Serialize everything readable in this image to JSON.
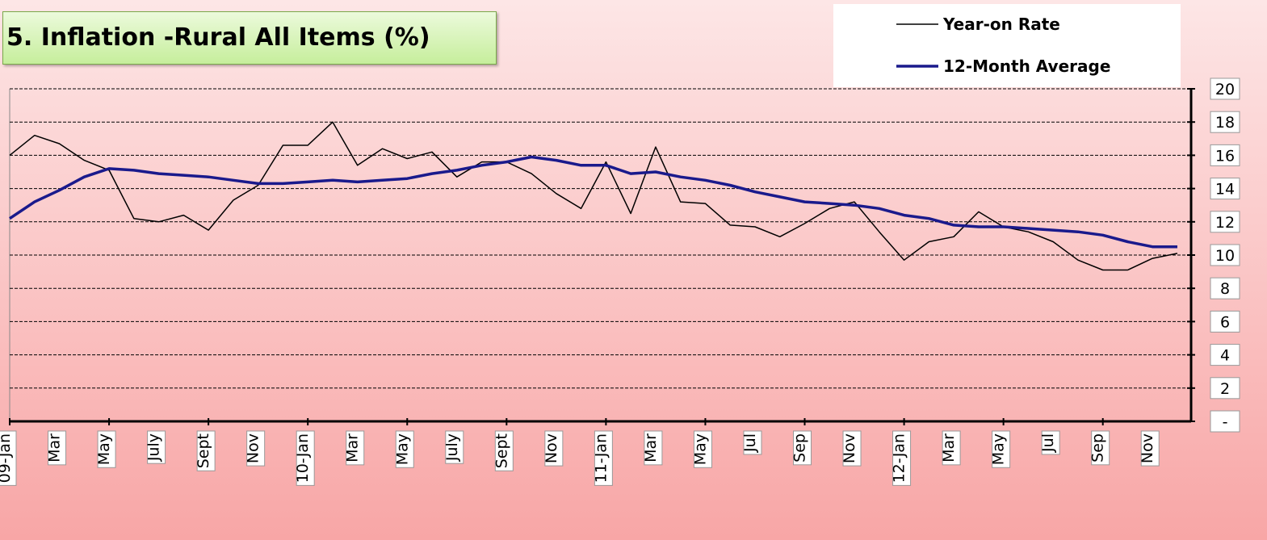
{
  "chart_data": {
    "type": "line",
    "title": "5. Inflation -Rural All Items (%)",
    "categories": [
      "09-Jan",
      null,
      "Mar",
      null,
      "May",
      null,
      "July",
      null,
      "Sept",
      null,
      "Nov",
      null,
      "10-Jan",
      null,
      "Mar",
      null,
      "May",
      null,
      "July",
      null,
      "Sept",
      null,
      "Nov",
      null,
      "11-Jan",
      null,
      "Mar",
      null,
      "May",
      null,
      "Jul",
      null,
      "Sep",
      null,
      "Nov",
      null,
      "12-Jan",
      null,
      "Mar",
      null,
      "May",
      null,
      "Jul",
      null,
      "Sep",
      null,
      "Nov",
      null
    ],
    "series": [
      {
        "name": "Year-on Rate",
        "color": "#000000",
        "values": [
          16.0,
          17.2,
          16.7,
          15.7,
          15.1,
          12.2,
          12.0,
          12.4,
          11.5,
          13.3,
          14.2,
          16.6,
          16.6,
          18.0,
          15.4,
          16.4,
          15.8,
          16.2,
          14.7,
          15.6,
          15.6,
          14.9,
          13.7,
          12.8,
          15.6,
          12.5,
          16.5,
          13.2,
          13.1,
          11.8,
          11.7,
          11.1,
          11.9,
          12.8,
          13.2,
          11.4,
          9.7,
          10.8,
          11.1,
          12.6,
          11.7,
          11.4,
          10.8,
          9.7,
          9.1,
          9.1,
          9.8,
          10.1
        ]
      },
      {
        "name": "12-Month Average",
        "color": "#1a1a8c",
        "values": [
          12.2,
          13.2,
          13.9,
          14.7,
          15.2,
          15.1,
          14.9,
          14.8,
          14.7,
          14.5,
          14.3,
          14.3,
          14.4,
          14.5,
          14.4,
          14.5,
          14.6,
          14.9,
          15.1,
          15.4,
          15.6,
          15.9,
          15.7,
          15.4,
          15.4,
          14.9,
          15.0,
          14.7,
          14.5,
          14.2,
          13.8,
          13.5,
          13.2,
          13.1,
          13.0,
          12.8,
          12.4,
          12.2,
          11.8,
          11.7,
          11.7,
          11.6,
          11.5,
          11.4,
          11.2,
          10.8,
          10.5,
          10.5
        ]
      }
    ],
    "ylim": [
      0,
      20
    ],
    "yticks": [
      {
        "value": 0,
        "label": "-"
      },
      2,
      4,
      6,
      8,
      10,
      12,
      14,
      16,
      18,
      20
    ],
    "grid": true,
    "legend": "top-right"
  }
}
